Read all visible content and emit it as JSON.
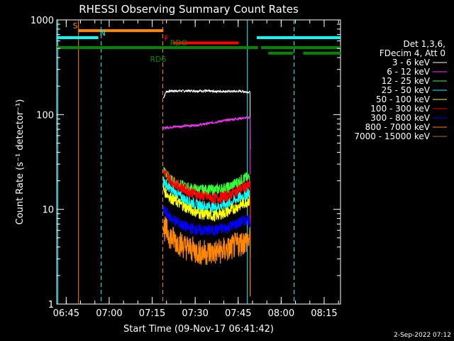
{
  "chart_data": {
    "type": "line",
    "title": "RHESSI Observing Summary Count Rates",
    "xlabel": "Start Time (09-Nov-17 06:41:42)",
    "ylabel": "Count Rate (s⁻¹ detector⁻¹)",
    "yscale": "log",
    "ylim": [
      1,
      1000
    ],
    "y_ticks": [
      "1",
      "10",
      "100",
      "1000"
    ],
    "x_range_min": [
      0,
      99
    ],
    "x_ticks": [
      {
        "min": 3.3,
        "label": "06:45"
      },
      {
        "min": 18.3,
        "label": "07:00"
      },
      {
        "min": 33.3,
        "label": "07:15"
      },
      {
        "min": 48.3,
        "label": "07:30"
      },
      {
        "min": 63.3,
        "label": "07:45"
      },
      {
        "min": 78.3,
        "label": "08:00"
      },
      {
        "min": 93.3,
        "label": "08:15"
      }
    ],
    "legend_header": [
      "Det 1,3,6,",
      "FDecim 4, Att 0"
    ],
    "series": [
      {
        "name": "3 - 6 keV",
        "color": "#ffffff",
        "start": 37.2,
        "end": 67.5,
        "x": [
          37.2,
          38.2,
          40,
          45,
          50,
          55,
          60,
          65,
          67.5
        ],
        "y": [
          150,
          175,
          178,
          178,
          178,
          176,
          176,
          176,
          172
        ]
      },
      {
        "name": "6 - 12 keV",
        "color": "#ff33ff",
        "start": 37.2,
        "end": 67.5,
        "x": [
          37.2,
          40,
          45,
          50,
          55,
          60,
          65,
          67.5
        ],
        "y": [
          72,
          74,
          76,
          78,
          83,
          88,
          92,
          93
        ]
      },
      {
        "name": "12 - 25 keV",
        "color": "#33ff33",
        "start": 37.2,
        "end": 67.5,
        "x": [
          37.2,
          40,
          45,
          50,
          55,
          60,
          65,
          67.5
        ],
        "y": [
          26,
          20,
          17,
          16,
          16,
          17,
          21,
          22
        ]
      },
      {
        "name": "25 - 50 keV",
        "color": "#00ffff",
        "start": 37.2,
        "end": 67.5,
        "x": [
          37.2,
          40,
          45,
          50,
          55,
          60,
          65,
          67.5
        ],
        "y": [
          20,
          16,
          12.5,
          11,
          10.5,
          11.5,
          14,
          15
        ]
      },
      {
        "name": "50 - 100 keV",
        "color": "#ffff00",
        "start": 37.2,
        "end": 67.5,
        "x": [
          37.2,
          40,
          45,
          50,
          55,
          60,
          65,
          67.5
        ],
        "y": [
          16,
          13,
          10.5,
          9,
          8.5,
          9.5,
          11.5,
          12.5
        ]
      },
      {
        "name": "100 - 300 keV",
        "color": "#ff0000",
        "start": 37.2,
        "end": 67.5,
        "x": [
          37.2,
          40,
          45,
          50,
          55,
          60,
          65,
          67.5
        ],
        "y": [
          25,
          20,
          16,
          14,
          13,
          14,
          17,
          18
        ]
      },
      {
        "name": "300 - 800 keV",
        "color": "#0000ff",
        "start": 37.2,
        "end": 67.5,
        "x": [
          37.2,
          40,
          45,
          50,
          55,
          60,
          65,
          67.5
        ],
        "y": [
          10,
          8,
          6.5,
          6,
          6,
          6.5,
          7.5,
          8
        ]
      },
      {
        "name": "800 - 7000 keV",
        "color": "#ff8800",
        "start": 37.2,
        "end": 67.5,
        "x": [
          37.2,
          40,
          45,
          50,
          55,
          60,
          65,
          67.5
        ],
        "y": [
          6.5,
          5,
          4,
          3.5,
          3.5,
          3.8,
          4.5,
          4.8
        ]
      },
      {
        "name": "7000 - 15000 keV",
        "color": "#aa7700",
        "start": 37.2,
        "end": 67.5,
        "x": [],
        "y": []
      }
    ],
    "flag_bars": [
      {
        "label": "S",
        "color": "#ff8800",
        "y": 770,
        "segments": [
          [
            7.5,
            37.2
          ]
        ],
        "label_min": 5.6
      },
      {
        "label": "N",
        "color": "#00ffff",
        "y": 650,
        "segments": [
          [
            0,
            14.5
          ],
          [
            69.8,
            99
          ]
        ],
        "label_min": 15.0
      },
      {
        "label": "F",
        "color": "#ff0000",
        "y": 570,
        "segments": [
          [
            40.5,
            63.5
          ]
        ],
        "label_min": 37.5
      },
      {
        "label": "RDO",
        "color": "#008800",
        "y": 510,
        "segments": [
          [
            0,
            70.2
          ],
          [
            71.3,
            99
          ]
        ],
        "label_min": 39.5
      },
      {
        "label": "RD6",
        "color": "#008800",
        "y": 445,
        "segments": [
          [
            73.8,
            82.5
          ],
          [
            86,
            99
          ]
        ],
        "label_min": 32.5
      }
    ],
    "vertical_lines": [
      {
        "min": 7.6,
        "color": "#ff8800",
        "style": "solid"
      },
      {
        "min": 37.0,
        "color": "#ff8800",
        "style": "dashed"
      },
      {
        "min": 0.4,
        "color": "#00ffff",
        "style": "solid"
      },
      {
        "min": 15.5,
        "color": "#00ffff",
        "style": "dashed"
      },
      {
        "min": 66.5,
        "color": "#00ffff",
        "style": "solid"
      },
      {
        "min": 82.8,
        "color": "#00ffff",
        "style": "dashed"
      }
    ],
    "footer": "2-Sep-2022 07:12"
  }
}
